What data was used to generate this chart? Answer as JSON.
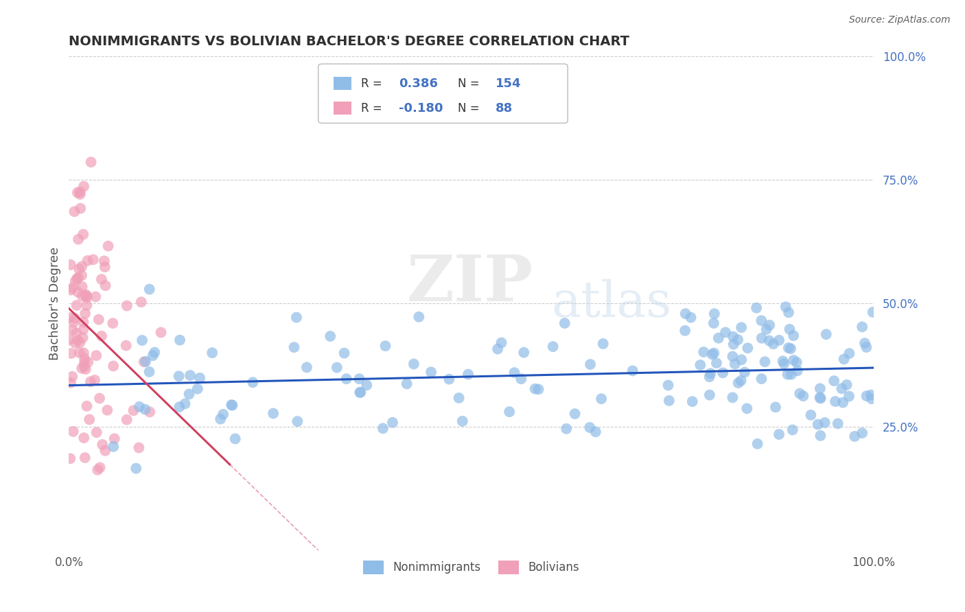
{
  "title": "NONIMMIGRANTS VS BOLIVIAN BACHELOR'S DEGREE CORRELATION CHART",
  "source_text": "Source: ZipAtlas.com",
  "ylabel": "Bachelor's Degree",
  "xlim": [
    0,
    100
  ],
  "ylim": [
    0,
    100
  ],
  "y_tick_right": [
    25,
    50,
    75,
    100
  ],
  "y_tick_right_labels": [
    "25.0%",
    "50.0%",
    "75.0%",
    "100.0%"
  ],
  "blue_color": "#90bce8",
  "pink_color": "#f0a0b8",
  "blue_line_color": "#2255bb",
  "pink_line_color": "#d04060",
  "title_color": "#303030",
  "legend_n_color": "#4472c4",
  "background_color": "#ffffff",
  "watermark_zip": "ZIP",
  "watermark_atlas": "atlas",
  "r1": 0.386,
  "r2": -0.18,
  "n_blue": 154,
  "n_pink": 88,
  "seed": 7
}
